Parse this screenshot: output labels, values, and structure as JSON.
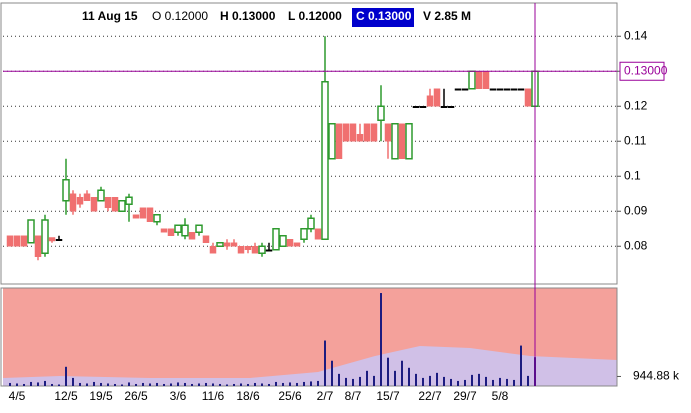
{
  "chart_data": {
    "type": "candlestick",
    "header": {
      "date": "11 Aug 15",
      "open": "O 0.12000",
      "high": "H 0.13000",
      "low": "L 0.12000",
      "close": "C 0.13000",
      "volume": "V 2.85 M"
    },
    "cursor": {
      "value": 0.13,
      "label": "0.13000"
    },
    "categories": [
      null,
      "4/5",
      null,
      null,
      null,
      null,
      null,
      null,
      "12/5",
      null,
      null,
      null,
      null,
      "19/5",
      null,
      null,
      null,
      null,
      "26/5",
      null,
      null,
      null,
      null,
      null,
      "3/6",
      null,
      null,
      null,
      null,
      "11/6",
      null,
      null,
      null,
      null,
      "18/6",
      null,
      null,
      null,
      null,
      null,
      "25/6",
      null,
      null,
      null,
      null,
      "2/7",
      null,
      null,
      null,
      "8/7",
      null,
      null,
      null,
      null,
      "15/7",
      null,
      null,
      null,
      null,
      null,
      "22/7",
      null,
      null,
      null,
      null,
      "29/7",
      null,
      null,
      null,
      null,
      "5/8",
      null,
      null,
      null,
      null,
      null
    ],
    "open": [
      0.083,
      0.083,
      0.083,
      0.081,
      0.083,
      0.078,
      0.0825,
      0.082,
      0.093,
      0.095,
      0.094,
      0.095,
      0.094,
      0.093,
      0.094,
      0.094,
      0.09,
      0.092,
      0.089,
      0.091,
      0.091,
      0.087,
      0.085,
      0.085,
      0.084,
      0.083,
      0.084,
      0.084,
      0.083,
      0.08,
      0.08,
      0.081,
      0.081,
      0.08,
      0.08,
      0.08,
      0.078,
      0.079,
      0.079,
      0.08,
      0.082,
      0.081,
      0.082,
      0.085,
      0.085,
      0.082,
      0.105,
      0.115,
      0.115,
      0.115,
      0.112,
      0.115,
      0.115,
      0.116,
      0.115,
      0.105,
      0.115,
      0.105,
      0.12,
      0.12,
      0.123,
      0.125,
      0.12,
      0.12,
      0.125,
      0.125,
      0.125,
      0.13,
      0.13,
      0.125,
      0.125,
      0.125,
      0.125,
      0.125,
      0.125,
      0.12
    ],
    "high": [
      0.083,
      0.083,
      0.083,
      0.0875,
      0.083,
      0.089,
      0.0825,
      0.083,
      0.105,
      0.096,
      0.095,
      0.096,
      0.094,
      0.097,
      0.094,
      0.094,
      0.093,
      0.095,
      0.089,
      0.091,
      0.091,
      0.089,
      0.085,
      0.085,
      0.086,
      0.088,
      0.084,
      0.086,
      0.083,
      0.081,
      0.081,
      0.082,
      0.082,
      0.08,
      0.08,
      0.081,
      0.081,
      0.081,
      0.085,
      0.083,
      0.082,
      0.081,
      0.085,
      0.089,
      0.085,
      0.14,
      0.115,
      0.115,
      0.115,
      0.115,
      0.115,
      0.115,
      0.115,
      0.126,
      0.115,
      0.115,
      0.115,
      0.115,
      0.12,
      0.12,
      0.125,
      0.125,
      0.125,
      0.12,
      0.125,
      0.125,
      0.13,
      0.13,
      0.13,
      0.125,
      0.125,
      0.125,
      0.125,
      0.125,
      0.125,
      0.13
    ],
    "low": [
      0.08,
      0.08,
      0.08,
      0.081,
      0.076,
      0.077,
      0.081,
      0.0815,
      0.089,
      0.089,
      0.091,
      0.093,
      0.09,
      0.093,
      0.09,
      0.09,
      0.09,
      0.087,
      0.088,
      0.088,
      0.087,
      0.086,
      0.084,
      0.083,
      0.083,
      0.082,
      0.082,
      0.083,
      0.081,
      0.078,
      0.08,
      0.079,
      0.08,
      0.078,
      0.078,
      0.078,
      0.077,
      0.079,
      0.079,
      0.08,
      0.08,
      0.08,
      0.081,
      0.084,
      0.082,
      0.082,
      0.105,
      0.105,
      0.11,
      0.11,
      0.11,
      0.11,
      0.11,
      0.11,
      0.105,
      0.105,
      0.105,
      0.105,
      0.12,
      0.12,
      0.12,
      0.12,
      0.12,
      0.12,
      0.125,
      0.125,
      0.125,
      0.125,
      0.125,
      0.125,
      0.125,
      0.125,
      0.125,
      0.125,
      0.12,
      0.12
    ],
    "close": [
      0.08,
      0.08,
      0.08,
      0.0875,
      0.077,
      0.0875,
      0.0815,
      0.082,
      0.099,
      0.09,
      0.092,
      0.093,
      0.09,
      0.096,
      0.091,
      0.09,
      0.093,
      0.094,
      0.088,
      0.088,
      0.087,
      0.089,
      0.084,
      0.083,
      0.086,
      0.086,
      0.082,
      0.086,
      0.081,
      0.078,
      0.081,
      0.08,
      0.08,
      0.078,
      0.079,
      0.078,
      0.08,
      0.079,
      0.085,
      0.083,
      0.08,
      0.08,
      0.085,
      0.088,
      0.082,
      0.127,
      0.115,
      0.105,
      0.11,
      0.11,
      0.11,
      0.11,
      0.11,
      0.12,
      0.11,
      0.115,
      0.105,
      0.115,
      0.12,
      0.12,
      0.12,
      0.12,
      0.12,
      0.12,
      0.125,
      0.125,
      0.13,
      0.125,
      0.125,
      0.125,
      0.125,
      0.125,
      0.125,
      0.125,
      0.12,
      0.13
    ],
    "volume": [
      300000,
      250000,
      200000,
      400000,
      350000,
      500000,
      200000,
      150000,
      1900000,
      800000,
      300000,
      250000,
      400000,
      300000,
      250000,
      200000,
      150000,
      350000,
      200000,
      300000,
      250000,
      300000,
      200000,
      250000,
      350000,
      300000,
      200000,
      250000,
      300000,
      250000,
      200000,
      150000,
      200000,
      250000,
      200000,
      300000,
      250000,
      200000,
      400000,
      300000,
      350000,
      300000,
      400000,
      450000,
      500000,
      4500000,
      2500000,
      1200000,
      800000,
      700000,
      900000,
      1500000,
      1000000,
      9200000,
      2800000,
      1500000,
      2500000,
      1800000,
      1200000,
      800000,
      1000000,
      1300000,
      900000,
      700000,
      500000,
      600000,
      1100000,
      1200000,
      900000,
      600000,
      800000,
      700000,
      600000,
      4000000,
      1000000,
      2850000
    ],
    "ylim": [
      0.0695,
      0.1495
    ],
    "yticks": [
      0.08,
      0.09,
      0.1,
      0.11,
      0.12,
      0.13,
      0.14
    ],
    "volume_ylim": [
      0,
      9500000
    ],
    "volume_yticks": [
      {
        "value": 944880,
        "label": "944.88 k"
      }
    ],
    "grid": true,
    "up_color": "#2e9a2e",
    "down_color": "#f07070",
    "flat_color": "#000000",
    "volume_color": "#1c1c80",
    "cursor_color": "#990099"
  }
}
